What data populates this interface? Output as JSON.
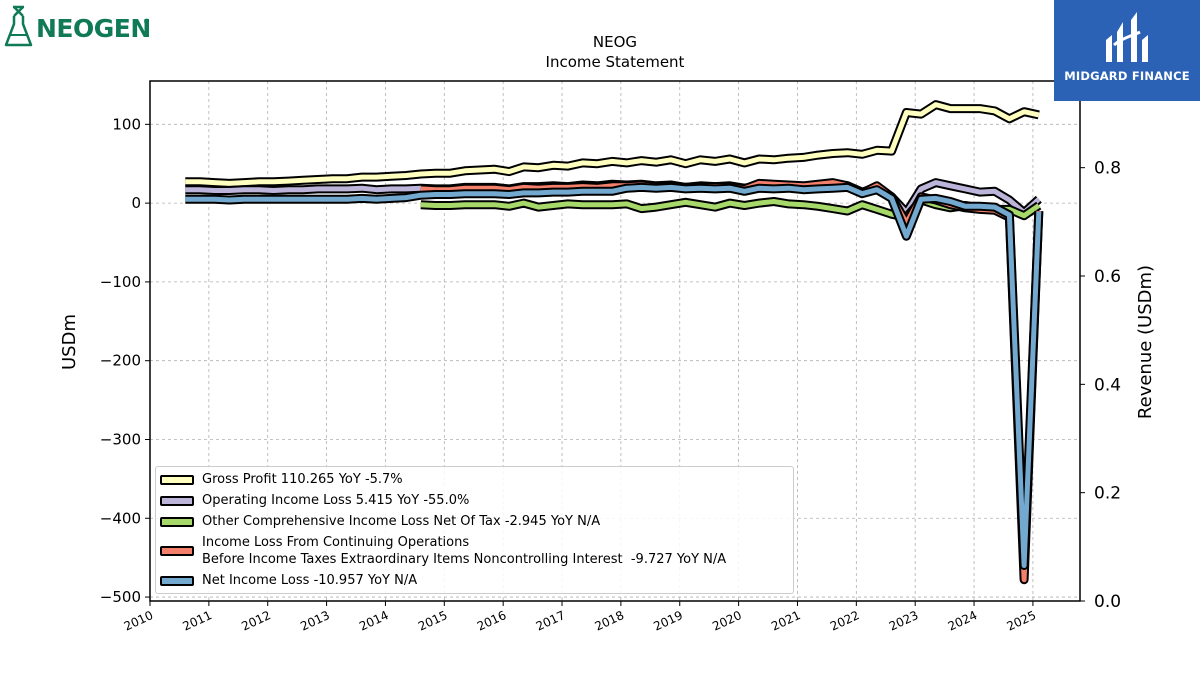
{
  "branding": {
    "company_logo_text": "NEOGEN",
    "company_logo_reg": "®",
    "publisher_logo_text": "MIDGARD FINANCE"
  },
  "chart_data": {
    "type": "line",
    "title": "NEOG",
    "subtitle": "Income Statement",
    "ylabel": "USDm",
    "ylabel_right": "Revenue (USDm)",
    "ylim": [
      -505,
      155
    ],
    "ylim_right": [
      0.0,
      0.96
    ],
    "yticks": [
      100,
      0,
      -100,
      -200,
      -300,
      -400,
      -500
    ],
    "ytick_labels": [
      "100",
      "0",
      "−100",
      "−200",
      "−300",
      "−400",
      "−500"
    ],
    "yticks_right": [
      0.8,
      0.6,
      0.4,
      0.2,
      0.0
    ],
    "ytick_labels_right": [
      "0.8",
      "0.6",
      "0.4",
      "0.2",
      "0.0"
    ],
    "xlim": [
      2010.0,
      2025.8
    ],
    "xticks": [
      2010,
      2011,
      2012,
      2013,
      2014,
      2015,
      2016,
      2017,
      2018,
      2019,
      2020,
      2021,
      2022,
      2023,
      2024,
      2025
    ],
    "xtick_labels": [
      "2010",
      "2011",
      "2012",
      "2013",
      "2014",
      "2015",
      "2016",
      "2017",
      "2018",
      "2019",
      "2020",
      "2021",
      "2022",
      "2023",
      "2024",
      "2025"
    ],
    "grid": true,
    "legend_position": "lower-left",
    "series": [
      {
        "name": "Gross Profit",
        "legend_label": "Gross Profit  110.265 YoY -5.7%",
        "color": "#ffffbf",
        "points": [
          [
            2010.6,
            27
          ],
          [
            2010.85,
            27
          ],
          [
            2011.1,
            26
          ],
          [
            2011.35,
            25
          ],
          [
            2011.6,
            26
          ],
          [
            2011.85,
            27
          ],
          [
            2012.1,
            27
          ],
          [
            2012.35,
            28
          ],
          [
            2012.6,
            29
          ],
          [
            2012.85,
            30
          ],
          [
            2013.1,
            31
          ],
          [
            2013.35,
            31
          ],
          [
            2013.6,
            33
          ],
          [
            2013.85,
            33
          ],
          [
            2014.1,
            34
          ],
          [
            2014.35,
            35
          ],
          [
            2014.6,
            37
          ],
          [
            2014.85,
            38
          ],
          [
            2015.1,
            38
          ],
          [
            2015.35,
            41
          ],
          [
            2015.6,
            42
          ],
          [
            2015.85,
            43
          ],
          [
            2016.1,
            40
          ],
          [
            2016.35,
            46
          ],
          [
            2016.6,
            45
          ],
          [
            2016.85,
            48
          ],
          [
            2017.1,
            47
          ],
          [
            2017.35,
            51
          ],
          [
            2017.6,
            50
          ],
          [
            2017.85,
            53
          ],
          [
            2018.1,
            51
          ],
          [
            2018.35,
            54
          ],
          [
            2018.6,
            52
          ],
          [
            2018.85,
            55
          ],
          [
            2019.1,
            50
          ],
          [
            2019.35,
            55
          ],
          [
            2019.6,
            53
          ],
          [
            2019.85,
            56
          ],
          [
            2020.1,
            51
          ],
          [
            2020.35,
            56
          ],
          [
            2020.6,
            55
          ],
          [
            2020.85,
            57
          ],
          [
            2021.1,
            58
          ],
          [
            2021.35,
            61
          ],
          [
            2021.6,
            63
          ],
          [
            2021.85,
            64
          ],
          [
            2022.1,
            62
          ],
          [
            2022.35,
            67
          ],
          [
            2022.6,
            66
          ],
          [
            2022.85,
            115
          ],
          [
            2023.1,
            113
          ],
          [
            2023.35,
            125
          ],
          [
            2023.6,
            120
          ],
          [
            2023.85,
            120
          ],
          [
            2024.1,
            120
          ],
          [
            2024.35,
            117
          ],
          [
            2024.6,
            107
          ],
          [
            2024.85,
            116
          ],
          [
            2025.1,
            112
          ]
        ]
      },
      {
        "name": "Operating Income Loss",
        "legend_label": "Operating Income Loss  5.415 YoY -55.0%",
        "color": "#bcb5d9",
        "points": [
          [
            2010.6,
            17
          ],
          [
            2010.85,
            17
          ],
          [
            2011.1,
            16
          ],
          [
            2011.35,
            16
          ],
          [
            2011.6,
            17
          ],
          [
            2011.85,
            17
          ],
          [
            2012.1,
            16
          ],
          [
            2012.35,
            17
          ],
          [
            2012.6,
            17
          ],
          [
            2012.85,
            18
          ],
          [
            2013.1,
            18
          ],
          [
            2013.35,
            18
          ],
          [
            2013.6,
            19
          ],
          [
            2013.85,
            17
          ],
          [
            2014.1,
            18
          ],
          [
            2014.35,
            18
          ],
          [
            2014.6,
            19
          ],
          [
            2014.85,
            18
          ],
          [
            2015.1,
            18
          ],
          [
            2015.35,
            20
          ],
          [
            2015.6,
            20
          ],
          [
            2015.85,
            20
          ],
          [
            2016.1,
            18
          ],
          [
            2016.35,
            21
          ],
          [
            2016.6,
            21
          ],
          [
            2016.85,
            22
          ],
          [
            2017.1,
            21
          ],
          [
            2017.35,
            23
          ],
          [
            2017.6,
            22
          ],
          [
            2017.85,
            24
          ],
          [
            2018.1,
            23
          ],
          [
            2018.35,
            24
          ],
          [
            2018.6,
            22
          ],
          [
            2018.85,
            23
          ],
          [
            2019.1,
            20
          ],
          [
            2019.35,
            22
          ],
          [
            2019.6,
            21
          ],
          [
            2019.85,
            22
          ],
          [
            2020.1,
            19
          ],
          [
            2020.35,
            22
          ],
          [
            2020.6,
            21
          ],
          [
            2020.85,
            21
          ],
          [
            2021.1,
            20
          ],
          [
            2021.35,
            21
          ],
          [
            2021.6,
            22
          ],
          [
            2021.85,
            22
          ],
          [
            2022.1,
            14
          ],
          [
            2022.35,
            20
          ],
          [
            2022.6,
            8
          ],
          [
            2022.85,
            -12
          ],
          [
            2023.1,
            18
          ],
          [
            2023.35,
            26
          ],
          [
            2023.6,
            22
          ],
          [
            2023.85,
            18
          ],
          [
            2024.1,
            14
          ],
          [
            2024.35,
            15
          ],
          [
            2024.6,
            4
          ],
          [
            2024.85,
            -12
          ],
          [
            2025.1,
            5
          ]
        ]
      },
      {
        "name": "Other Comprehensive Income Loss Net Of Tax",
        "legend_label": "Other Comprehensive Income Loss Net Of Tax  -2.945 YoY N/A",
        "color": "#a6d96a",
        "points": [
          [
            2014.6,
            -2
          ],
          [
            2014.85,
            -3
          ],
          [
            2015.1,
            -3
          ],
          [
            2015.35,
            -2
          ],
          [
            2015.6,
            -2
          ],
          [
            2015.85,
            -2
          ],
          [
            2016.1,
            -4
          ],
          [
            2016.35,
            0
          ],
          [
            2016.6,
            -5
          ],
          [
            2016.85,
            -3
          ],
          [
            2017.1,
            -1
          ],
          [
            2017.35,
            -2
          ],
          [
            2017.6,
            -2
          ],
          [
            2017.85,
            -2
          ],
          [
            2018.1,
            -1
          ],
          [
            2018.35,
            -7
          ],
          [
            2018.6,
            -5
          ],
          [
            2018.85,
            -2
          ],
          [
            2019.1,
            1
          ],
          [
            2019.35,
            -2
          ],
          [
            2019.6,
            -5
          ],
          [
            2019.85,
            0
          ],
          [
            2020.1,
            -3
          ],
          [
            2020.35,
            0
          ],
          [
            2020.6,
            2
          ],
          [
            2020.85,
            -1
          ],
          [
            2021.1,
            -2
          ],
          [
            2021.35,
            -4
          ],
          [
            2021.6,
            -7
          ],
          [
            2021.85,
            -10
          ],
          [
            2022.1,
            -2
          ],
          [
            2022.35,
            -8
          ],
          [
            2022.6,
            -14
          ],
          [
            2022.85,
            -18
          ],
          [
            2023.1,
            4
          ],
          [
            2023.35,
            -2
          ],
          [
            2023.6,
            -6
          ],
          [
            2023.85,
            -3
          ],
          [
            2024.1,
            -6
          ],
          [
            2024.35,
            -8
          ],
          [
            2024.6,
            -8
          ],
          [
            2024.85,
            -16
          ],
          [
            2025.1,
            -3
          ]
        ]
      },
      {
        "name": "Income Loss From Continuing Operations Before Income Taxes Extraordinary Items Noncontrolling Interest",
        "legend_label": "Income Loss From Continuing Operations\nBefore Income Taxes Extraordinary Items Noncontrolling Interest  -9.727 YoY N/A",
        "color": "#f4806c",
        "points": [
          [
            2014.6,
            18
          ],
          [
            2014.85,
            17
          ],
          [
            2015.1,
            17
          ],
          [
            2015.35,
            19
          ],
          [
            2015.6,
            19
          ],
          [
            2015.85,
            19
          ],
          [
            2016.1,
            17
          ],
          [
            2016.35,
            20
          ],
          [
            2016.6,
            19
          ],
          [
            2016.85,
            20
          ],
          [
            2017.1,
            20
          ],
          [
            2017.35,
            21
          ],
          [
            2017.6,
            20
          ],
          [
            2017.85,
            22
          ],
          [
            2018.1,
            22
          ],
          [
            2018.35,
            23
          ],
          [
            2018.6,
            21
          ],
          [
            2018.85,
            22
          ],
          [
            2019.1,
            20
          ],
          [
            2019.35,
            21
          ],
          [
            2019.6,
            21
          ],
          [
            2019.85,
            21
          ],
          [
            2020.1,
            18
          ],
          [
            2020.35,
            25
          ],
          [
            2020.6,
            24
          ],
          [
            2020.85,
            23
          ],
          [
            2021.1,
            22
          ],
          [
            2021.35,
            24
          ],
          [
            2021.6,
            26
          ],
          [
            2021.85,
            22
          ],
          [
            2022.1,
            13
          ],
          [
            2022.35,
            22
          ],
          [
            2022.6,
            8
          ],
          [
            2022.85,
            -25
          ],
          [
            2023.1,
            8
          ],
          [
            2023.35,
            4
          ],
          [
            2023.6,
            -2
          ],
          [
            2023.85,
            -6
          ],
          [
            2024.1,
            -8
          ],
          [
            2024.35,
            -9
          ],
          [
            2024.6,
            -18
          ],
          [
            2024.85,
            -478
          ],
          [
            2025.1,
            -10
          ]
        ]
      },
      {
        "name": "Net Income Loss",
        "legend_label": "Net Income Loss  -10.957 YoY N/A",
        "color": "#74a9cf",
        "points": [
          [
            2010.6,
            5
          ],
          [
            2010.85,
            5
          ],
          [
            2011.1,
            5
          ],
          [
            2011.35,
            4
          ],
          [
            2011.6,
            5
          ],
          [
            2011.85,
            5
          ],
          [
            2012.1,
            5
          ],
          [
            2012.35,
            5
          ],
          [
            2012.6,
            5
          ],
          [
            2012.85,
            5
          ],
          [
            2013.1,
            5
          ],
          [
            2013.35,
            5
          ],
          [
            2013.6,
            6
          ],
          [
            2013.85,
            5
          ],
          [
            2014.1,
            6
          ],
          [
            2014.35,
            7
          ],
          [
            2014.6,
            10
          ],
          [
            2014.85,
            11
          ],
          [
            2015.1,
            11
          ],
          [
            2015.35,
            12
          ],
          [
            2015.6,
            12
          ],
          [
            2015.85,
            12
          ],
          [
            2016.1,
            11
          ],
          [
            2016.35,
            13
          ],
          [
            2016.6,
            13
          ],
          [
            2016.85,
            14
          ],
          [
            2017.1,
            14
          ],
          [
            2017.35,
            15
          ],
          [
            2017.6,
            15
          ],
          [
            2017.85,
            15
          ],
          [
            2018.1,
            19
          ],
          [
            2018.35,
            20
          ],
          [
            2018.6,
            19
          ],
          [
            2018.85,
            20
          ],
          [
            2019.1,
            18
          ],
          [
            2019.35,
            19
          ],
          [
            2019.6,
            18
          ],
          [
            2019.85,
            19
          ],
          [
            2020.1,
            15
          ],
          [
            2020.35,
            19
          ],
          [
            2020.6,
            18
          ],
          [
            2020.85,
            19
          ],
          [
            2021.1,
            17
          ],
          [
            2021.35,
            18
          ],
          [
            2021.6,
            19
          ],
          [
            2021.85,
            20
          ],
          [
            2022.1,
            12
          ],
          [
            2022.35,
            17
          ],
          [
            2022.6,
            6
          ],
          [
            2022.85,
            -42
          ],
          [
            2023.1,
            5
          ],
          [
            2023.35,
            6
          ],
          [
            2023.6,
            2
          ],
          [
            2023.85,
            -4
          ],
          [
            2024.1,
            -4
          ],
          [
            2024.35,
            -5
          ],
          [
            2024.6,
            -15
          ],
          [
            2024.85,
            -460
          ],
          [
            2025.1,
            -11
          ]
        ]
      }
    ]
  }
}
